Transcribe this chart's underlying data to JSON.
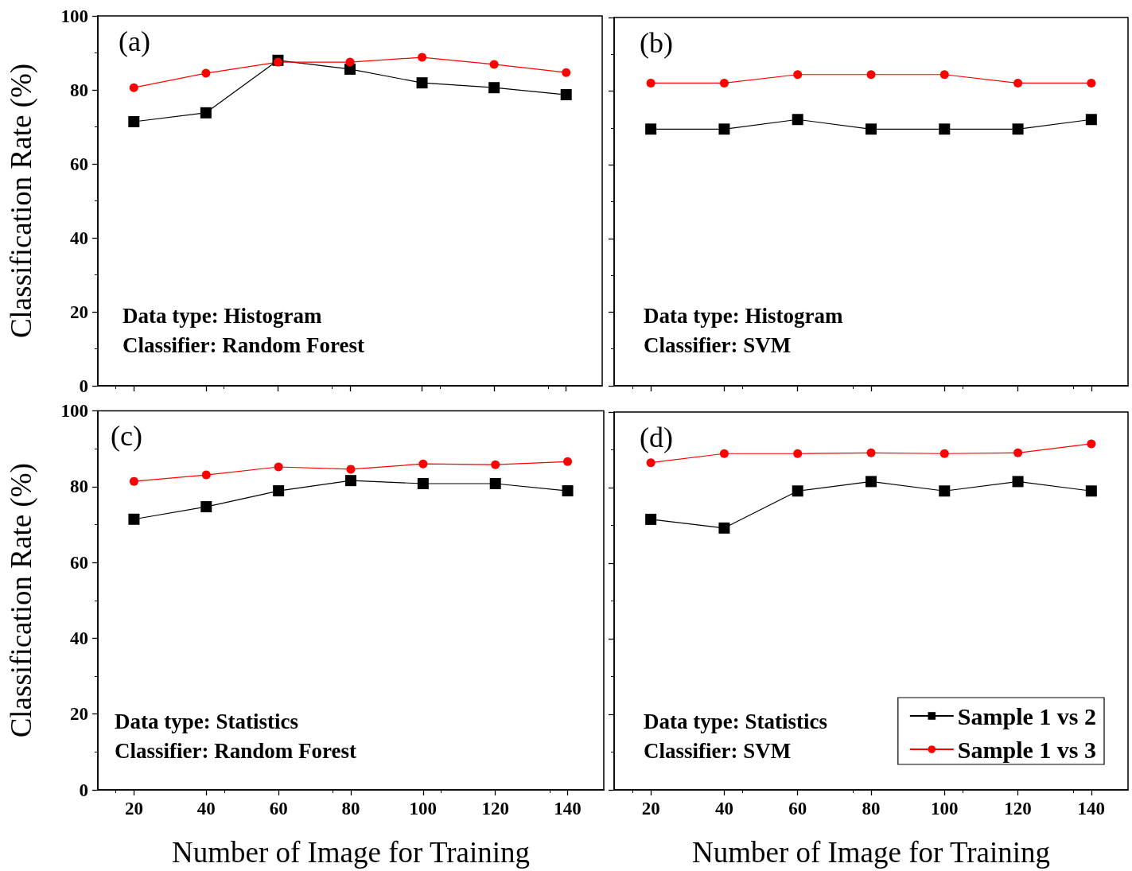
{
  "chart_data": [
    {
      "type": "line",
      "ylabel": "Classification Rate (%)",
      "x": [
        20,
        40,
        60,
        80,
        100,
        120,
        140
      ],
      "xlim": [
        10,
        150
      ],
      "xticks": [
        20,
        40,
        60,
        80,
        100,
        120,
        140
      ],
      "ylim": [
        0,
        100
      ],
      "yticks": [
        0,
        20,
        40,
        60,
        80,
        100
      ],
      "tick_labels": "y",
      "grid": false,
      "legend": false,
      "annotations": [
        "(a)",
        "Data type: Histogram",
        "Classifier: Random Forest"
      ],
      "series": [
        {
          "color": "#000000",
          "marker": "square",
          "values": [
            71.4,
            73.8,
            88,
            85.6,
            81.9,
            80.6,
            78.7
          ]
        },
        {
          "color": "#ff0000",
          "marker": "circle",
          "values": [
            80.6,
            84.5,
            87.5,
            87.5,
            88.8,
            86.9,
            84.7
          ]
        }
      ]
    },
    {
      "type": "line",
      "x": [
        20,
        40,
        60,
        80,
        100,
        120,
        140
      ],
      "xlim": [
        10,
        150
      ],
      "xticks": [
        20,
        40,
        60,
        80,
        100,
        120,
        140
      ],
      "ylim": [
        0,
        100
      ],
      "yticks": [
        0,
        20,
        40,
        60,
        80,
        100
      ],
      "tick_labels": false,
      "grid": false,
      "legend": false,
      "annotations": [
        "(b)",
        "Data type: Histogram",
        "Classifier: SVM"
      ],
      "series": [
        {
          "color": "#000000",
          "marker": "square",
          "values": [
            69.7,
            69.7,
            72.3,
            69.7,
            69.7,
            69.7,
            72.3
          ]
        },
        {
          "color": "#ff0000",
          "marker": "circle",
          "values": [
            82.2,
            82.2,
            84.5,
            84.5,
            84.5,
            82.2,
            82.2
          ]
        }
      ]
    },
    {
      "type": "line",
      "xlabel": "Number of Image for Training",
      "ylabel": "Classification Rate (%)",
      "x": [
        20,
        40,
        60,
        80,
        100,
        120,
        140
      ],
      "xlim": [
        10,
        150
      ],
      "xticks": [
        20,
        40,
        60,
        80,
        100,
        120,
        140
      ],
      "ylim": [
        0,
        100
      ],
      "yticks": [
        0,
        20,
        40,
        60,
        80,
        100
      ],
      "grid": false,
      "legend": false,
      "annotations": [
        "(c)",
        "Data type: Statistics",
        "Classifier: Random Forest"
      ],
      "series": [
        {
          "color": "#000000",
          "marker": "square",
          "values": [
            71.4,
            74.7,
            78.9,
            81.6,
            80.8,
            80.8,
            78.9
          ]
        },
        {
          "color": "#ff0000",
          "marker": "circle",
          "values": [
            81.4,
            83.1,
            85.2,
            84.6,
            86.0,
            85.8,
            86.6
          ]
        }
      ]
    },
    {
      "type": "line",
      "xlabel": "Number of Image for Training",
      "x": [
        20,
        40,
        60,
        80,
        100,
        120,
        140
      ],
      "xlim": [
        10,
        150
      ],
      "xticks": [
        20,
        40,
        60,
        80,
        100,
        120,
        140
      ],
      "ylim": [
        0,
        100
      ],
      "yticks": [
        0,
        20,
        40,
        60,
        80,
        100
      ],
      "tick_labels": "x",
      "grid": false,
      "legend": "bottom right",
      "annotations": [
        "(d)",
        "Data type: Statistics",
        "Classifier: SVM"
      ],
      "series": [
        {
          "name": "Sample 1 vs 2",
          "color": "#000000",
          "marker": "square",
          "values": [
            71.6,
            69.3,
            79.1,
            81.6,
            79.1,
            81.6,
            79.1
          ]
        },
        {
          "name": "Sample 1 vs 3",
          "color": "#ff0000",
          "marker": "circle",
          "values": [
            86.6,
            89.0,
            89.0,
            89.2,
            89.0,
            89.2,
            91.6
          ]
        }
      ]
    }
  ]
}
